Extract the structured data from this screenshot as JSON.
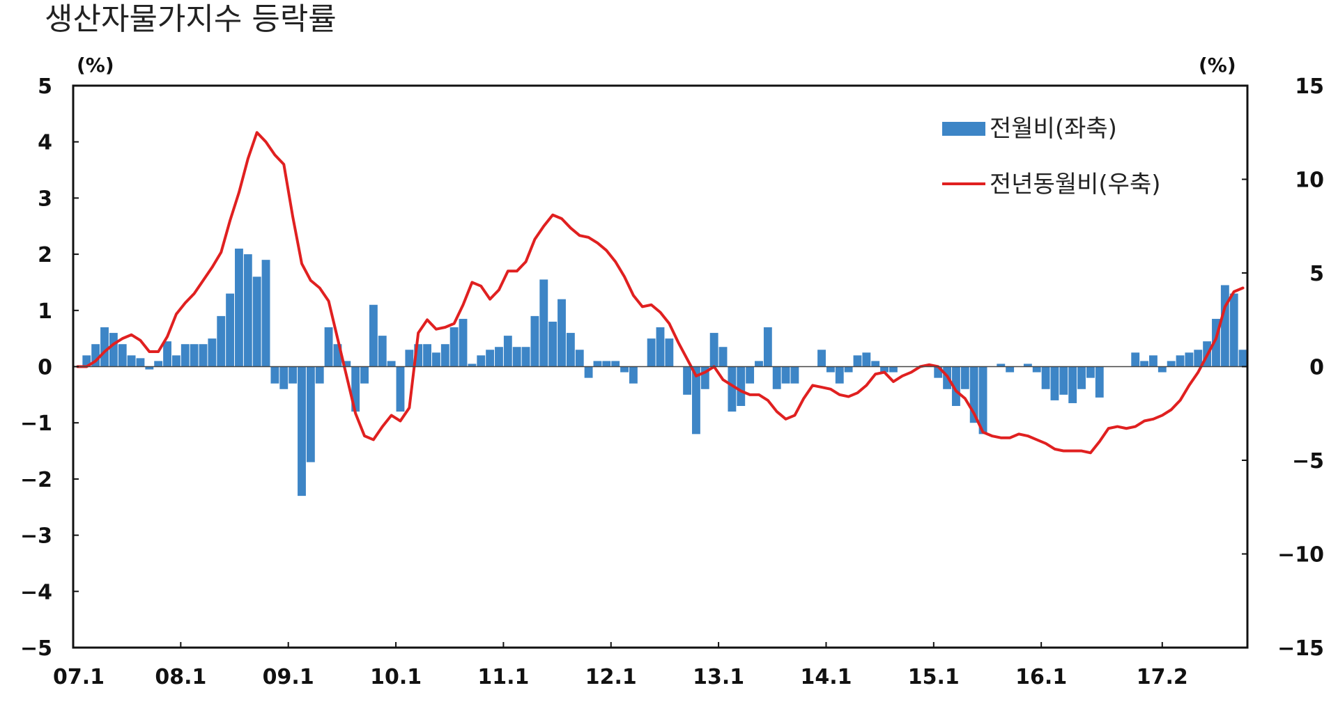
{
  "chart_data": {
    "type": "bar+line",
    "title": "생산자물가지수 등락률",
    "left_axis": {
      "unit_label": "(%)",
      "ylim": [
        -5,
        5
      ],
      "ticks": [
        5,
        4,
        3,
        2,
        1,
        0,
        -1,
        -2,
        -3,
        -4,
        -5
      ],
      "tick_labels": [
        "5",
        "4",
        "3",
        "2",
        "1",
        "0",
        "−1",
        "−2",
        "−3",
        "−4",
        "−5"
      ]
    },
    "right_axis": {
      "unit_label": "(%)",
      "ylim": [
        -15,
        15
      ],
      "ticks": [
        15,
        10,
        5,
        0,
        -5,
        -10,
        -15
      ],
      "tick_labels": [
        "15",
        "10",
        "5",
        "0",
        "−5",
        "−10",
        "−15"
      ]
    },
    "x_tick_labels": [
      "07.1",
      "08.1",
      "09.1",
      "10.1",
      "11.1",
      "12.1",
      "13.1",
      "14.1",
      "15.1",
      "16.1",
      "17.2"
    ],
    "x_tick_months": [
      "2007-01",
      "2008-01",
      "2009-01",
      "2010-01",
      "2011-01",
      "2012-01",
      "2013-01",
      "2014-01",
      "2015-01",
      "2016-01",
      "2017-02"
    ],
    "legend_position": "top-right",
    "grid": false,
    "series": [
      {
        "name": "전월비(좌축)",
        "kind": "bar",
        "axis": "left",
        "color": "#3d85c6",
        "start_month": "2007-01",
        "values": [
          0.0,
          0.2,
          0.4,
          0.7,
          0.6,
          0.4,
          0.2,
          0.15,
          -0.05,
          0.1,
          0.45,
          0.2,
          0.4,
          0.4,
          0.4,
          0.5,
          0.9,
          1.3,
          2.1,
          2.0,
          1.6,
          1.9,
          -0.3,
          -0.4,
          -0.3,
          -2.3,
          -1.7,
          -0.3,
          0.7,
          0.4,
          0.1,
          -0.8,
          -0.3,
          1.1,
          0.55,
          0.1,
          -0.8,
          0.3,
          0.4,
          0.4,
          0.25,
          0.4,
          0.7,
          0.85,
          0.05,
          0.2,
          0.3,
          0.35,
          0.55,
          0.35,
          0.35,
          0.9,
          1.55,
          0.8,
          1.2,
          0.6,
          0.3,
          -0.2,
          0.1,
          0.1,
          0.1,
          -0.1,
          -0.3,
          0.0,
          0.5,
          0.7,
          0.5,
          0.0,
          -0.5,
          -1.2,
          -0.4,
          0.6,
          0.35,
          -0.8,
          -0.7,
          -0.3,
          0.1,
          0.7,
          -0.4,
          -0.3,
          -0.3,
          0.0,
          0.0,
          0.3,
          -0.1,
          -0.3,
          -0.1,
          0.2,
          0.25,
          0.1,
          -0.1,
          -0.1,
          0.0,
          0.0,
          0.0,
          0.0,
          -0.2,
          -0.4,
          -0.7,
          -0.4,
          -1.0,
          -1.2,
          0.0,
          0.05,
          -0.1,
          0.0,
          0.05,
          -0.1,
          -0.4,
          -0.6,
          -0.5,
          -0.65,
          -0.4,
          -0.2,
          -0.55,
          0.0,
          0.0,
          0.0,
          0.25,
          0.1,
          0.2,
          -0.1,
          0.1,
          0.2,
          0.25,
          0.3,
          0.45,
          0.85,
          1.45,
          1.3,
          0.3
        ]
      },
      {
        "name": "전년동월비(우축)",
        "kind": "line",
        "axis": "right",
        "color": "#e02020",
        "start_month": "2007-01",
        "values": [
          0.0,
          0.0,
          0.3,
          0.8,
          1.2,
          1.5,
          1.7,
          1.4,
          0.8,
          0.8,
          1.6,
          2.8,
          3.4,
          3.9,
          4.6,
          5.3,
          6.1,
          7.8,
          9.3,
          11.1,
          12.5,
          12.0,
          11.3,
          10.8,
          8.0,
          5.5,
          4.6,
          4.2,
          3.5,
          1.5,
          -0.5,
          -2.5,
          -3.7,
          -3.9,
          -3.2,
          -2.6,
          -2.9,
          -2.2,
          1.8,
          2.5,
          2.0,
          2.1,
          2.3,
          3.3,
          4.5,
          4.3,
          3.6,
          4.1,
          5.1,
          5.1,
          5.6,
          6.8,
          7.5,
          8.1,
          7.9,
          7.4,
          7.0,
          6.9,
          6.6,
          6.2,
          5.6,
          4.8,
          3.8,
          3.2,
          3.3,
          2.9,
          2.3,
          1.3,
          0.4,
          -0.5,
          -0.3,
          0.0,
          -0.7,
          -1.0,
          -1.3,
          -1.5,
          -1.5,
          -1.8,
          -2.4,
          -2.8,
          -2.6,
          -1.7,
          -1.0,
          -1.1,
          -1.2,
          -1.5,
          -1.6,
          -1.4,
          -1.0,
          -0.4,
          -0.3,
          -0.8,
          -0.5,
          -0.3,
          0.0,
          0.1,
          0.0,
          -0.5,
          -1.3,
          -1.7,
          -2.5,
          -3.5,
          -3.7,
          -3.8,
          -3.8,
          -3.6,
          -3.7,
          -3.9,
          -4.1,
          -4.4,
          -4.5,
          -4.5,
          -4.5,
          -4.6,
          -4.0,
          -3.3,
          -3.2,
          -3.3,
          -3.2,
          -2.9,
          -2.8,
          -2.6,
          -2.3,
          -1.8,
          -1.0,
          -0.3,
          0.6,
          1.5,
          3.2,
          4.0,
          4.2
        ]
      }
    ]
  }
}
